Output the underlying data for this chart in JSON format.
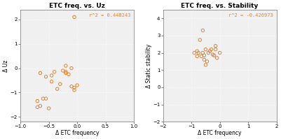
{
  "title1": "ETC freq. vs. Uz",
  "title2": "ETC freq. vs. Stability",
  "xlabel": "Δ ETC frequency",
  "ylabel1": "Δ Uz",
  "ylabel2": "Δ Static stability",
  "r2_label1": "r^2 = 0.448243",
  "r2_label2": "r^2 = -0.426973",
  "color": "#E8822A",
  "marker_size": 10,
  "marker_lw": 0.7,
  "xlim1": [
    -1.0,
    1.0
  ],
  "ylim1": [
    -2.2,
    2.4
  ],
  "xticks1": [
    -1.0,
    -0.5,
    0.0,
    0.5,
    1.0
  ],
  "yticks1": [
    -2,
    -1,
    0,
    1,
    2
  ],
  "xlim2": [
    -2.0,
    2.0
  ],
  "ylim2": [
    -2.0,
    4.5
  ],
  "xticks2": [
    -2,
    -1,
    0,
    1,
    2
  ],
  "yticks2": [
    -2,
    -1,
    0,
    1,
    2,
    3,
    4
  ],
  "ax_facecolor": "#f0f0f0",
  "grid_color": "#ffffff",
  "spine_color": "#888888",
  "scatter1_x": [
    -0.05,
    -0.55,
    -0.65,
    -0.45,
    -0.55,
    -0.7,
    -0.7,
    -0.5,
    -0.35,
    -0.3,
    -0.2,
    -0.25,
    -0.2,
    -0.1,
    -0.1,
    -0.05,
    -0.05,
    0.0,
    -0.15,
    -0.2,
    -0.4,
    -0.45,
    -0.6,
    -0.65
  ],
  "scatter1_y": [
    2.1,
    -0.35,
    -0.2,
    -0.55,
    -1.25,
    -1.35,
    -1.6,
    -1.65,
    -0.85,
    -0.65,
    -0.2,
    -0.1,
    0.1,
    0.0,
    -0.75,
    -0.8,
    -0.9,
    -0.7,
    -0.25,
    -0.15,
    -0.15,
    -0.3,
    -1.25,
    -1.55
  ],
  "scatter2_x": [
    -0.6,
    -0.7,
    -0.8,
    -0.8,
    -0.5,
    -0.6,
    -0.55,
    -0.65,
    -0.55,
    -0.45,
    -0.5,
    -0.4,
    -0.35,
    -0.25,
    -0.3,
    -0.15,
    -0.2,
    -0.1,
    -0.15,
    0.0,
    -0.9,
    -0.75
  ],
  "scatter2_y": [
    3.3,
    2.75,
    1.8,
    2.1,
    2.2,
    2.0,
    1.85,
    1.8,
    1.6,
    1.5,
    1.3,
    2.0,
    2.1,
    1.9,
    2.2,
    2.2,
    1.85,
    1.7,
    2.4,
    2.0,
    2.0,
    2.0
  ]
}
